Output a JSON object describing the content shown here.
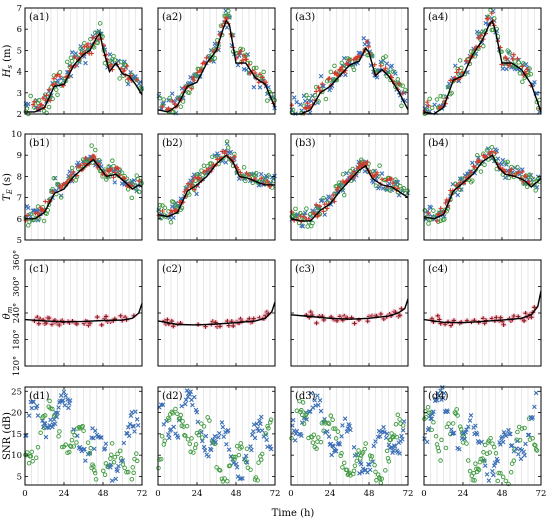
{
  "figure": {
    "xlabel": "Time (h)",
    "x_ticks": [
      0,
      24,
      48,
      72
    ],
    "columns": [
      "1",
      "2",
      "3",
      "4"
    ]
  },
  "colors": {
    "blue": "#3b6fb6",
    "green": "#3f9a3f",
    "red": "#d23b2b",
    "brown": "#8b1a12",
    "pink": "#f6b8d4",
    "line": "#000000",
    "grid": "#d8d8d8"
  },
  "chart_data": [
    {
      "row": "a",
      "type": "scatter",
      "ylabel": "H_s (m)",
      "ylabel_main": "H",
      "ylabel_sub": "s",
      "ylabel_unit": "(m)",
      "ylim": [
        2,
        7
      ],
      "yticks": [
        "2",
        "3",
        "4",
        "5",
        "6",
        "7"
      ],
      "ytick_values": [
        2,
        3,
        4,
        5,
        6,
        7
      ],
      "xlim": [
        0,
        72
      ],
      "grid": "x-only",
      "panels": [
        {
          "tag": "(a1)",
          "line": [
            [
              0,
              2.1
            ],
            [
              6,
              2.1
            ],
            [
              12,
              2.3
            ],
            [
              18,
              3.3
            ],
            [
              24,
              3.4
            ],
            [
              30,
              4.3
            ],
            [
              36,
              4.8
            ],
            [
              40,
              5.0
            ],
            [
              44,
              5.6
            ],
            [
              46,
              5.8
            ],
            [
              48,
              5.1
            ],
            [
              52,
              4.0
            ],
            [
              56,
              4.4
            ],
            [
              60,
              3.9
            ],
            [
              64,
              3.8
            ],
            [
              68,
              3.4
            ],
            [
              72,
              2.9
            ]
          ]
        },
        {
          "tag": "(a2)",
          "line": [
            [
              0,
              2.2
            ],
            [
              6,
              2.1
            ],
            [
              12,
              2.4
            ],
            [
              18,
              3.3
            ],
            [
              24,
              3.5
            ],
            [
              30,
              4.4
            ],
            [
              36,
              5.0
            ],
            [
              40,
              6.0
            ],
            [
              42,
              6.4
            ],
            [
              44,
              6.2
            ],
            [
              48,
              4.4
            ],
            [
              54,
              4.4
            ],
            [
              60,
              3.7
            ],
            [
              66,
              3.4
            ],
            [
              72,
              2.3
            ]
          ]
        },
        {
          "tag": "(a3)",
          "line": [
            [
              0,
              2.0
            ],
            [
              6,
              2.0
            ],
            [
              12,
              2.2
            ],
            [
              18,
              3.0
            ],
            [
              24,
              3.3
            ],
            [
              30,
              3.8
            ],
            [
              36,
              4.3
            ],
            [
              42,
              4.5
            ],
            [
              46,
              5.1
            ],
            [
              48,
              4.9
            ],
            [
              52,
              3.8
            ],
            [
              56,
              4.1
            ],
            [
              60,
              3.8
            ],
            [
              66,
              3.1
            ],
            [
              72,
              2.2
            ]
          ]
        },
        {
          "tag": "(a4)",
          "line": [
            [
              0,
              2.1
            ],
            [
              6,
              2.0
            ],
            [
              12,
              2.3
            ],
            [
              18,
              3.6
            ],
            [
              24,
              3.8
            ],
            [
              30,
              4.8
            ],
            [
              36,
              5.5
            ],
            [
              40,
              6.2
            ],
            [
              42,
              6.4
            ],
            [
              44,
              5.9
            ],
            [
              48,
              4.4
            ],
            [
              54,
              4.4
            ],
            [
              60,
              4.1
            ],
            [
              66,
              3.4
            ],
            [
              72,
              2.1
            ]
          ]
        }
      ],
      "series": [
        "Blue x",
        "Green o",
        "Red +"
      ]
    },
    {
      "row": "b",
      "type": "scatter",
      "ylabel": "T_E (s)",
      "ylabel_main": "T",
      "ylabel_sub": "E",
      "ylabel_unit": "(s)",
      "ylim": [
        5,
        10
      ],
      "yticks": [
        "5",
        "6",
        "7",
        "8",
        "9",
        "10"
      ],
      "ytick_values": [
        5,
        6,
        7,
        8,
        9,
        10
      ],
      "xlim": [
        0,
        72
      ],
      "grid": "x-only",
      "panels": [
        {
          "tag": "(b1)",
          "line": [
            [
              0,
              6.0
            ],
            [
              6,
              6.0
            ],
            [
              12,
              6.3
            ],
            [
              18,
              7.2
            ],
            [
              24,
              7.4
            ],
            [
              30,
              8.0
            ],
            [
              36,
              8.4
            ],
            [
              42,
              8.8
            ],
            [
              46,
              8.4
            ],
            [
              50,
              8.0
            ],
            [
              56,
              8.1
            ],
            [
              62,
              7.7
            ],
            [
              66,
              7.4
            ],
            [
              70,
              7.6
            ],
            [
              72,
              7.5
            ]
          ]
        },
        {
          "tag": "(b2)",
          "line": [
            [
              0,
              6.2
            ],
            [
              6,
              6.1
            ],
            [
              12,
              6.3
            ],
            [
              18,
              7.3
            ],
            [
              24,
              7.6
            ],
            [
              30,
              8.0
            ],
            [
              36,
              8.6
            ],
            [
              42,
              9.0
            ],
            [
              46,
              8.7
            ],
            [
              50,
              8.0
            ],
            [
              56,
              7.9
            ],
            [
              62,
              7.7
            ],
            [
              66,
              7.6
            ],
            [
              72,
              7.6
            ]
          ]
        },
        {
          "tag": "(b3)",
          "line": [
            [
              0,
              6.0
            ],
            [
              6,
              5.9
            ],
            [
              12,
              5.9
            ],
            [
              18,
              6.4
            ],
            [
              24,
              6.7
            ],
            [
              30,
              7.3
            ],
            [
              36,
              7.8
            ],
            [
              42,
              8.3
            ],
            [
              46,
              8.5
            ],
            [
              50,
              7.9
            ],
            [
              56,
              7.6
            ],
            [
              62,
              7.5
            ],
            [
              66,
              7.3
            ],
            [
              72,
              7.0
            ]
          ]
        },
        {
          "tag": "(b4)",
          "line": [
            [
              0,
              6.1
            ],
            [
              6,
              6.0
            ],
            [
              12,
              6.2
            ],
            [
              18,
              7.3
            ],
            [
              24,
              7.7
            ],
            [
              30,
              8.1
            ],
            [
              36,
              8.7
            ],
            [
              42,
              9.0
            ],
            [
              46,
              8.4
            ],
            [
              50,
              8.1
            ],
            [
              56,
              8.0
            ],
            [
              62,
              7.8
            ],
            [
              66,
              7.5
            ],
            [
              72,
              7.9
            ]
          ]
        }
      ],
      "series": [
        "Blue x",
        "Green o",
        "Red +"
      ]
    },
    {
      "row": "c",
      "type": "scatter",
      "ylabel": "θ_m",
      "ylabel_main": "θ",
      "ylabel_sub": "m",
      "ylabel_unit": "",
      "ylim": [
        120,
        360
      ],
      "yticks": [
        "120°",
        "180°",
        "240°",
        "300°",
        "360°"
      ],
      "ytick_values": [
        120,
        180,
        240,
        300,
        360
      ],
      "xlim": [
        0,
        72
      ],
      "grid": "x-only",
      "panels": [
        {
          "tag": "(c1)",
          "line": [
            [
              0,
              225
            ],
            [
              12,
              222
            ],
            [
              24,
              220
            ],
            [
              36,
              221
            ],
            [
              48,
              223
            ],
            [
              60,
              224
            ],
            [
              66,
              228
            ],
            [
              70,
              240
            ],
            [
              72,
              262
            ]
          ]
        },
        {
          "tag": "(c2)",
          "line": [
            [
              0,
              222
            ],
            [
              12,
              214
            ],
            [
              24,
              213
            ],
            [
              36,
              215
            ],
            [
              48,
              218
            ],
            [
              60,
              222
            ],
            [
              66,
              228
            ],
            [
              70,
              243
            ],
            [
              72,
              265
            ]
          ]
        },
        {
          "tag": "(c3)",
          "line": [
            [
              0,
              236
            ],
            [
              12,
              232
            ],
            [
              24,
              228
            ],
            [
              36,
              226
            ],
            [
              48,
              228
            ],
            [
              60,
              233
            ],
            [
              66,
              240
            ],
            [
              70,
              250
            ],
            [
              72,
              272
            ]
          ]
        },
        {
          "tag": "(c4)",
          "line": [
            [
              0,
              225
            ],
            [
              12,
              219
            ],
            [
              24,
              218
            ],
            [
              36,
              221
            ],
            [
              48,
              224
            ],
            [
              60,
              228
            ],
            [
              66,
              236
            ],
            [
              70,
              255
            ],
            [
              72,
              290
            ]
          ]
        }
      ],
      "series": [
        "Brown +"
      ]
    },
    {
      "row": "d",
      "type": "scatter",
      "ylabel": "SNR (dB)",
      "ylabel_main": "SNR (dB)",
      "ylabel_sub": "",
      "ylabel_unit": "",
      "ylim": [
        3,
        26
      ],
      "yticks": [
        "5",
        "10",
        "15",
        "20",
        "25"
      ],
      "ytick_values": [
        5,
        10,
        15,
        20,
        25
      ],
      "xlim": [
        0,
        72
      ],
      "grid": "x-only",
      "panels": [
        {
          "tag": "(d1)"
        },
        {
          "tag": "(d2)"
        },
        {
          "tag": "(d3)"
        },
        {
          "tag": "(d4)"
        }
      ],
      "series": [
        "Blue x",
        "Green o"
      ]
    }
  ]
}
